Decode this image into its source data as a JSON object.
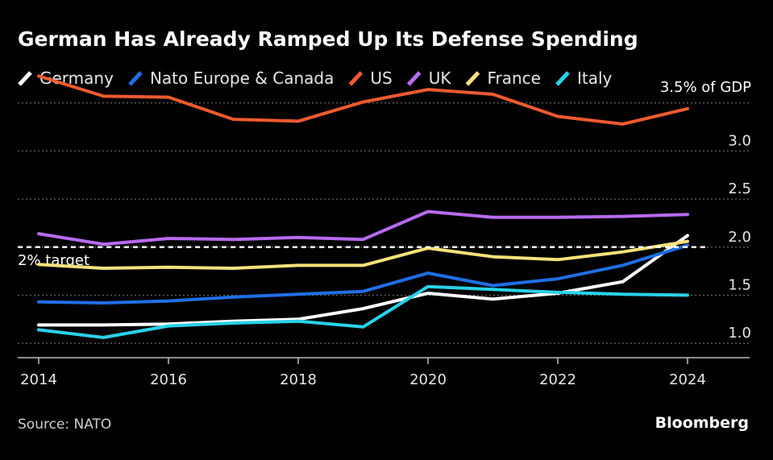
{
  "chart_data": {
    "type": "line",
    "title": "German Has Already Ramped Up Its Defense Spending",
    "x": [
      2014,
      2015,
      2016,
      2017,
      2018,
      2019,
      2020,
      2021,
      2022,
      2023,
      2024
    ],
    "xticks": [
      "2014",
      "2016",
      "2018",
      "2020",
      "2022",
      "2024"
    ],
    "yticks": [
      "1.0",
      "1.5",
      "2.0",
      "2.5",
      "3.0"
    ],
    "ylim": [
      0.85,
      3.85
    ],
    "xlim": [
      2014,
      2024
    ],
    "series": [
      {
        "name": "Germany",
        "color": "#ffffff",
        "values": [
          1.19,
          1.19,
          1.2,
          1.23,
          1.25,
          1.36,
          1.52,
          1.46,
          1.52,
          1.64,
          2.12
        ]
      },
      {
        "name": "Nato Europe & Canada",
        "color": "#1f6fe5",
        "values": [
          1.43,
          1.42,
          1.44,
          1.48,
          1.51,
          1.54,
          1.73,
          1.6,
          1.67,
          1.81,
          2.02
        ]
      },
      {
        "name": "US",
        "color": "#ee5a2f",
        "values": [
          3.78,
          3.57,
          3.56,
          3.33,
          3.31,
          3.51,
          3.64,
          3.59,
          3.36,
          3.28,
          3.44
        ]
      },
      {
        "name": "UK",
        "color": "#b86bf0",
        "values": [
          2.14,
          2.03,
          2.09,
          2.08,
          2.1,
          2.08,
          2.37,
          2.31,
          2.31,
          2.32,
          2.34
        ]
      },
      {
        "name": "France",
        "color": "#f6e27a",
        "values": [
          1.82,
          1.78,
          1.79,
          1.78,
          1.81,
          1.81,
          1.99,
          1.9,
          1.87,
          1.95,
          2.06
        ]
      },
      {
        "name": "Italy",
        "color": "#2ad1e8",
        "values": [
          1.14,
          1.06,
          1.18,
          1.21,
          1.23,
          1.17,
          1.59,
          1.56,
          1.53,
          1.51,
          1.5
        ]
      }
    ],
    "reference_lines": [
      {
        "label": "3.5% of GDP",
        "value": 3.5,
        "style": "dotted"
      },
      {
        "label": "2% target",
        "value": 2.0,
        "style": "dashed"
      }
    ],
    "source": "Source: NATO",
    "brand": "Bloomberg",
    "legend_position": "top-left",
    "y_axis_position": "right",
    "grid": true
  }
}
